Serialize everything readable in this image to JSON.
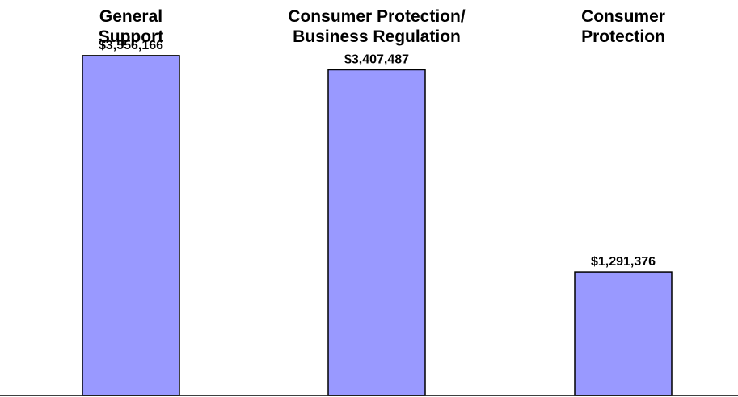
{
  "chart_data": {
    "type": "bar",
    "categories": [
      [
        "General",
        "Support"
      ],
      [
        "Consumer Protection/",
        "Business Regulation"
      ],
      [
        "Consumer",
        "Protection"
      ]
    ],
    "values": [
      3556166,
      3407487,
      1291376
    ],
    "value_labels": [
      "$3,556,166",
      "$3,407,487",
      "$1,291,376"
    ],
    "title": "",
    "xlabel": "",
    "ylabel": "",
    "ylim": [
      0,
      3800000
    ],
    "grid": false,
    "legend": "none",
    "bar_color": "#9999ff",
    "bar_edge_color": "#000000",
    "axis_color": "#000000"
  }
}
